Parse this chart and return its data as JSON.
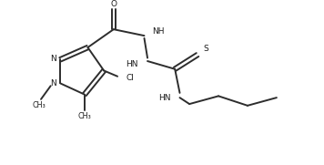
{
  "bg_color": "#ffffff",
  "line_color": "#2d2d2d",
  "text_color": "#1a1a1a",
  "line_width": 1.4,
  "figsize": [
    3.56,
    1.81
  ],
  "dpi": 100,
  "xlim": [
    0,
    10
  ],
  "ylim": [
    0,
    5
  ]
}
